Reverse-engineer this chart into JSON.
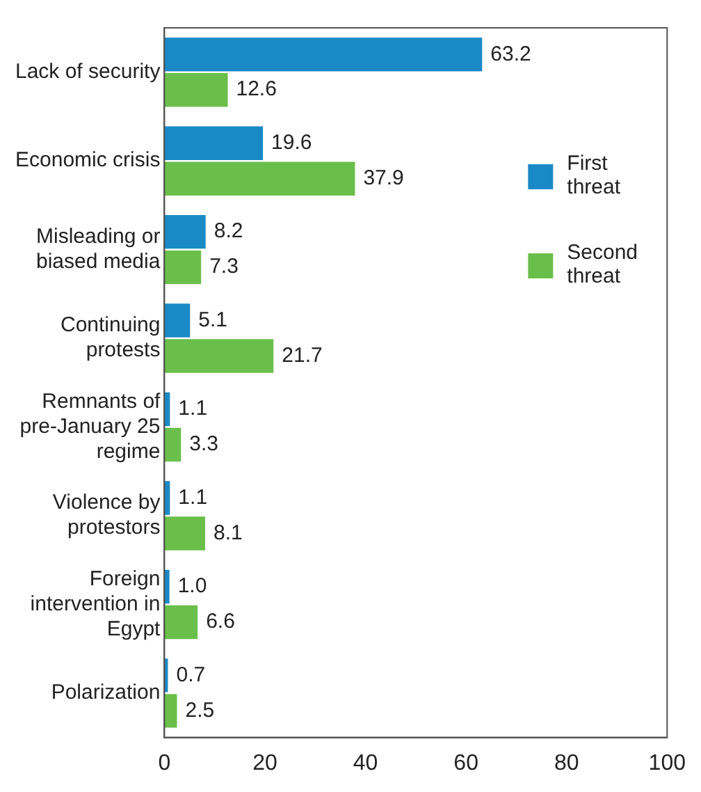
{
  "chart_data": {
    "type": "bar",
    "orientation": "horizontal",
    "categories": [
      "Lack of security",
      "Economic crisis",
      "Misleading or biased media",
      "Continuing protests",
      "Remnants of pre-January 25 regime",
      "Violence by protestors",
      "Foreign intervention in Egypt",
      "Polarization"
    ],
    "series": [
      {
        "name": "First threat",
        "color": "#1a8ac6",
        "values": [
          63.2,
          19.6,
          8.2,
          5.1,
          1.1,
          1.1,
          1.0,
          0.7
        ],
        "value_labels": [
          "63.2",
          "19.6",
          "8.2",
          "5.1",
          "1.1",
          "1.1",
          "1.0",
          "0.7"
        ]
      },
      {
        "name": "Second threat",
        "color": "#6abf4b",
        "values": [
          12.6,
          37.9,
          7.3,
          21.7,
          3.3,
          8.1,
          6.6,
          2.5
        ],
        "value_labels": [
          "12.6",
          "37.9",
          "7.3",
          "21.7",
          "3.3",
          "8.1",
          "6.6",
          "2.5"
        ]
      }
    ],
    "xlim": [
      0,
      100
    ],
    "xticks": [
      0,
      20,
      40,
      60,
      80,
      100
    ],
    "grid": false,
    "legend": "top right"
  }
}
